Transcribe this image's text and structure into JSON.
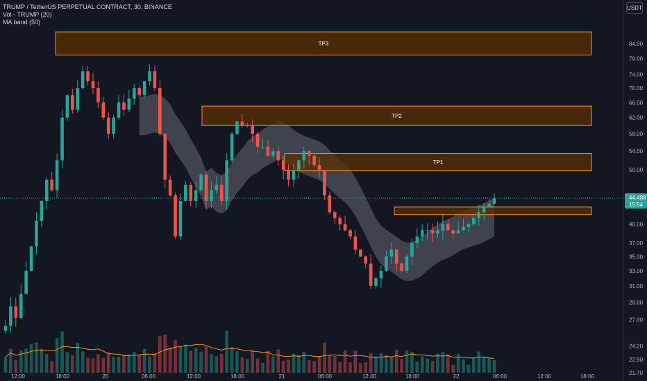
{
  "legend": {
    "symbol_line": "TRUMP / TetherUS PERPETUAL CONTRACT, 30, BINANCE",
    "vol_line": "Vol - TRUMP (20)",
    "ma_line": "MA band (50)"
  },
  "currency_button": "USDT",
  "colors": {
    "background": "#131722",
    "up": "#26a69a",
    "down": "#ef5350",
    "tp_border": "#f7931a",
    "tp_fill": "#5a3003",
    "band_gray": "#787b86",
    "band_teal": "#1b4b57",
    "band_red": "#8b2a2e",
    "vol_ma": "#f7931a",
    "text": "#b2b5be"
  },
  "chart_data": {
    "type": "candlestick",
    "y_axis": {
      "scale": "log",
      "ylim": [
        21.7,
        95
      ],
      "tick_labels": [
        "84.00",
        "79.00",
        "74.00",
        "70.00",
        "66.00",
        "62.00",
        "58.00",
        "54.00",
        "50.00",
        "45.00",
        "40.00",
        "37.00",
        "35.00",
        "33.00",
        "31.00",
        "29.00",
        "27.00",
        "24.20",
        "22.90",
        "21.70"
      ]
    },
    "x_axis": {
      "tick_labels": [
        "12:00",
        "18:00",
        "20",
        "06:00",
        "12:00",
        "18:00",
        "21",
        "06:00",
        "12:00",
        "18:00",
        "22",
        "06:00",
        "12:00",
        "18:00"
      ]
    },
    "current_price": {
      "price": 44.488,
      "label": "44.488",
      "countdown": "15:54"
    },
    "zones": [
      {
        "label": "TP3",
        "from": 80.2,
        "to": 88.2
      },
      {
        "label": "TP2",
        "from": 60.0,
        "to": 65.0
      },
      {
        "label": "TP1",
        "from": 49.8,
        "to": 53.5
      },
      {
        "label": "",
        "from": 41.6,
        "to": 42.9
      }
    ],
    "candles_path": [
      26.3,
      28.5,
      27.2,
      30.0,
      33.0,
      36.5,
      40.5,
      44.0,
      48.0,
      46.0,
      52.0,
      62.0,
      68.0,
      64.0,
      70.0,
      75.0,
      72.0,
      70.0,
      66.0,
      62.0,
      58.0,
      62.0,
      66.0,
      64.0,
      67.0,
      70.0,
      68.0,
      72.0,
      75.0,
      70.0,
      58.0,
      48.0,
      45.0,
      38.0,
      44.0,
      47.0,
      44.0,
      46.0,
      49.0,
      44.0,
      46.0,
      47.0,
      44.0,
      52.0,
      58.0,
      61.0,
      60.0,
      60.0,
      58.0,
      55.0,
      55.0,
      53.0,
      54.0,
      52.0,
      50.0,
      48.0,
      50.0,
      52.0,
      54.0,
      53.0,
      51.0,
      50.0,
      45.0,
      42.0,
      41.0,
      40.0,
      39.0,
      38.0,
      36.0,
      35.0,
      34.0,
      31.0,
      32.0,
      33.0,
      35.0,
      36.0,
      34.0,
      33.0,
      35.0,
      37.0,
      38.0,
      39.0,
      39.0,
      38.5,
      39.0,
      40.0,
      39.0,
      38.5,
      39.0,
      39.5,
      40.0,
      41.0,
      42.0,
      43.0,
      43.5,
      44.488
    ]
  }
}
